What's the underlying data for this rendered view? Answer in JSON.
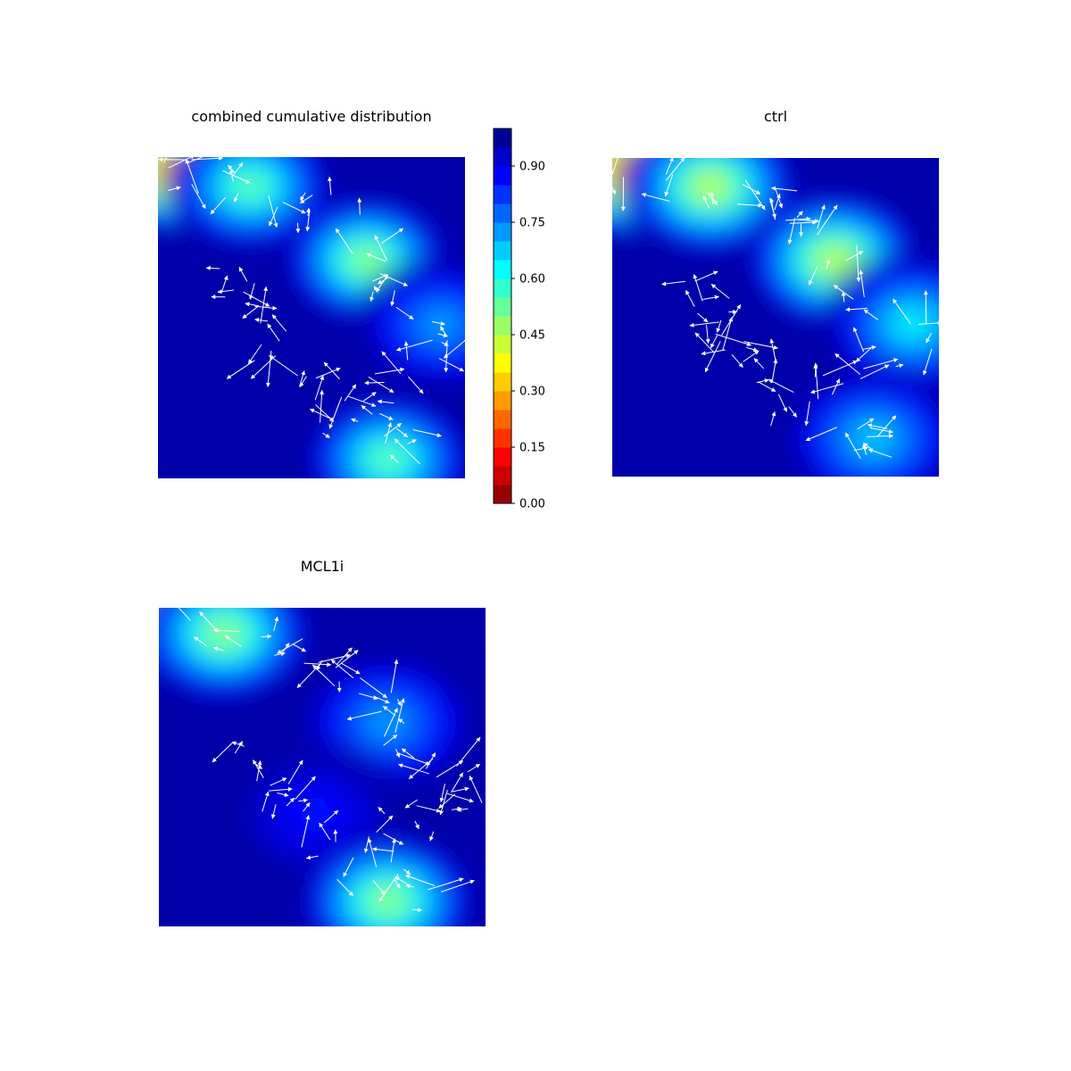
{
  "chart_data": {
    "type": "heatmap",
    "overlay": "quiver",
    "colormap": "jet",
    "arrow_color": "#ffffff",
    "background_color": "#0000aa",
    "axes": "off",
    "panels": [
      {
        "title": "combined cumulative distribution",
        "x_range": [
          0,
          1
        ],
        "y_range": [
          0,
          1
        ],
        "levels": "0.00–1.00 step 0.05",
        "hotspots": [
          {
            "x": 0.08,
            "y": 0.96,
            "value": 0.05
          },
          {
            "x": 0.3,
            "y": 0.91,
            "value": 0.5
          },
          {
            "x": 0.68,
            "y": 0.68,
            "value": 0.45
          },
          {
            "x": 0.92,
            "y": 0.48,
            "value": 0.7
          },
          {
            "x": 0.75,
            "y": 0.06,
            "value": 0.5
          }
        ]
      },
      {
        "title": "ctrl",
        "x_range": [
          0,
          1
        ],
        "y_range": [
          0,
          1
        ],
        "levels": "0.00–1.00 step 0.05",
        "hotspots": [
          {
            "x": 0.08,
            "y": 0.96,
            "value": 0.05
          },
          {
            "x": 0.3,
            "y": 0.91,
            "value": 0.4
          },
          {
            "x": 0.68,
            "y": 0.68,
            "value": 0.4
          },
          {
            "x": 0.92,
            "y": 0.48,
            "value": 0.6
          },
          {
            "x": 0.8,
            "y": 0.12,
            "value": 0.65
          }
        ]
      },
      {
        "title": "MCL1i",
        "x_range": [
          0,
          1
        ],
        "y_range": [
          0,
          1
        ],
        "levels": "0.00–1.00 step 0.05",
        "hotspots": [
          {
            "x": 0.05,
            "y": 0.97,
            "value": 0.05
          },
          {
            "x": 0.2,
            "y": 0.92,
            "value": 0.45
          },
          {
            "x": 0.7,
            "y": 0.64,
            "value": 0.7
          },
          {
            "x": 0.48,
            "y": 0.35,
            "value": 0.85
          },
          {
            "x": 0.7,
            "y": 0.08,
            "value": 0.45
          }
        ]
      }
    ],
    "colorbar": {
      "range": [
        0,
        1
      ],
      "ticks": [
        "0.00",
        "0.15",
        "0.30",
        "0.45",
        "0.60",
        "0.75",
        "0.90"
      ]
    }
  }
}
